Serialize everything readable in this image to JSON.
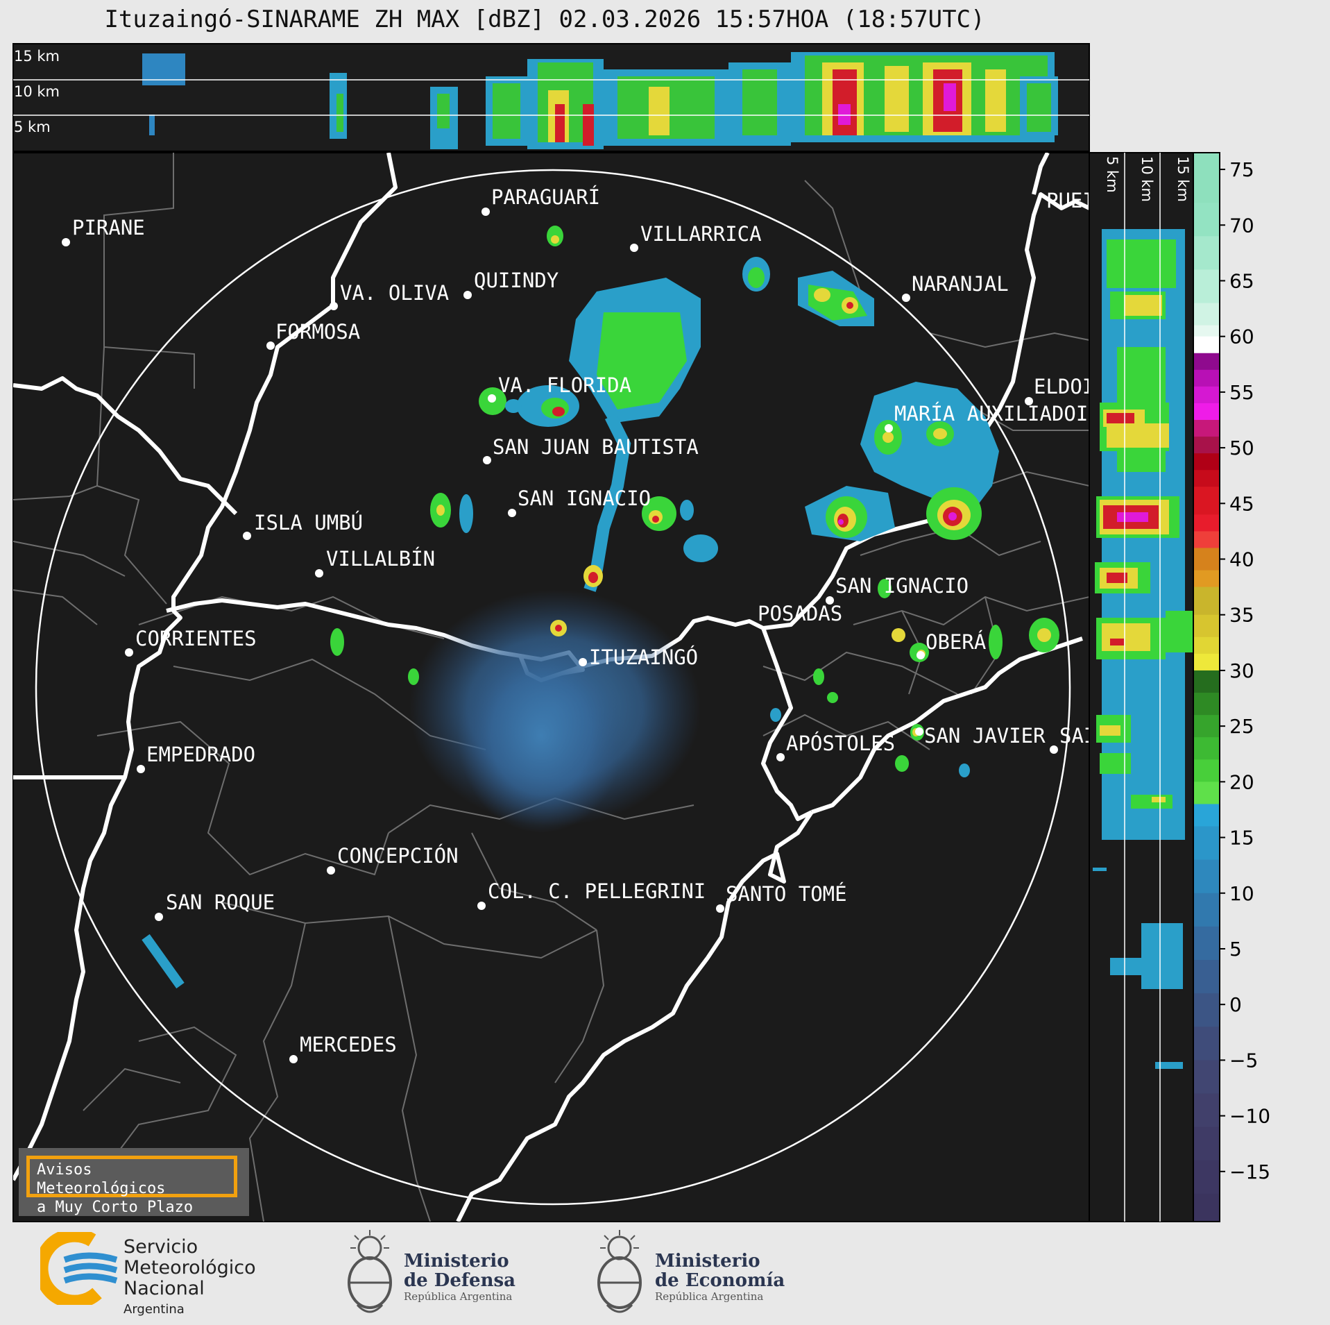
{
  "title": "Ituzaingó-SINARAME ZH MAX [dBZ] 02.03.2026 15:57HOA (18:57UTC)",
  "top_panel_altitudes": [
    "15 km",
    "10 km",
    "5 km"
  ],
  "side_panel_altitudes": [
    "5 km",
    "10 km",
    "15 km"
  ],
  "radar_site": "ITUZAINGÓ",
  "cities": [
    "PIRANE",
    "PARAGUARÍ",
    "VILLARRICA",
    "QUIINDY",
    "VA. OLIVA",
    "FORMOSA",
    "NARANJAL",
    "PUEI",
    "VA. FLORIDA",
    "ELDOI",
    "MARÍA AUXILIADOI",
    "SAN JUAN BAUTISTA",
    "SAN IGNACIO",
    "ISLA UMBÚ",
    "VILLALBÍN",
    "SAN IGNACIO",
    "POSADAS",
    "CORRIENTES",
    "ITUZAINGÓ",
    "OBERÁ",
    "SAN JAVIER",
    "SAI",
    "APÓSTOLES",
    "EMPEDRADO",
    "CONCEPCIÓN",
    "COL. C. PELLEGRINI",
    "SANTO TOMÉ",
    "SAN ROQUE",
    "MERCEDES"
  ],
  "colorbar": {
    "unit": "dBZ",
    "ticks": [
      "75",
      "70",
      "65",
      "60",
      "55",
      "50",
      "45",
      "40",
      "35",
      "30",
      "25",
      "20",
      "15",
      "10",
      "5",
      "0",
      "−5",
      "−10",
      "−15"
    ],
    "colors": {
      "low": "#3b3d70",
      "blue": "#2f8ec4",
      "green": "#3ad53a",
      "yellow": "#e8e23a",
      "orange": "#d98a1b",
      "red": "#d21d2a",
      "magenta": "#e01ad8",
      "white": "#ffffff",
      "mint": "#8ee0bd"
    }
  },
  "warning": {
    "line1": "Avisos Meteorológicos",
    "line2": "a Muy Corto Plazo"
  },
  "logos": {
    "smn": {
      "line1": "Servicio",
      "line2": "Meteorológico",
      "line3": "Nacional",
      "line4": "Argentina"
    },
    "defensa": {
      "line1": "Ministerio",
      "line2": "de Defensa",
      "line3": "República Argentina"
    },
    "economia": {
      "line1": "Ministerio",
      "line2": "de Economía",
      "line3": "República Argentina"
    }
  }
}
